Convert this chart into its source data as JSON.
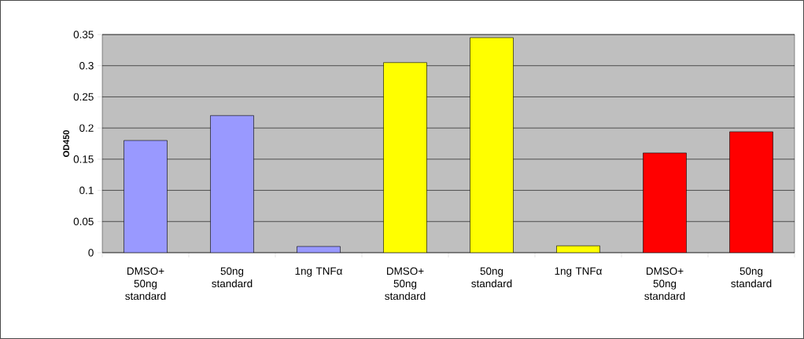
{
  "chart_data": {
    "type": "bar",
    "ylabel": "OD450",
    "categories": [
      "DMSO+ 50ng standard",
      "50ng standard",
      "1ng TNFα",
      "DMSO+ 50ng standard",
      "50ng standard",
      "1ng TNFα",
      "DMSO+ 50ng standard",
      "50ng standard"
    ],
    "values": [
      0.18,
      0.22,
      0.01,
      0.305,
      0.345,
      0.011,
      0.16,
      0.194
    ],
    "colors": [
      "#9999ff",
      "#9999ff",
      "#9999ff",
      "#ffff00",
      "#ffff00",
      "#ffff00",
      "#ff0000",
      "#ff0000"
    ],
    "ylim": [
      0,
      0.35
    ],
    "yticks": [
      0,
      0.05,
      0.1,
      0.15,
      0.2,
      0.25,
      0.3,
      0.35
    ],
    "grid": "y"
  }
}
